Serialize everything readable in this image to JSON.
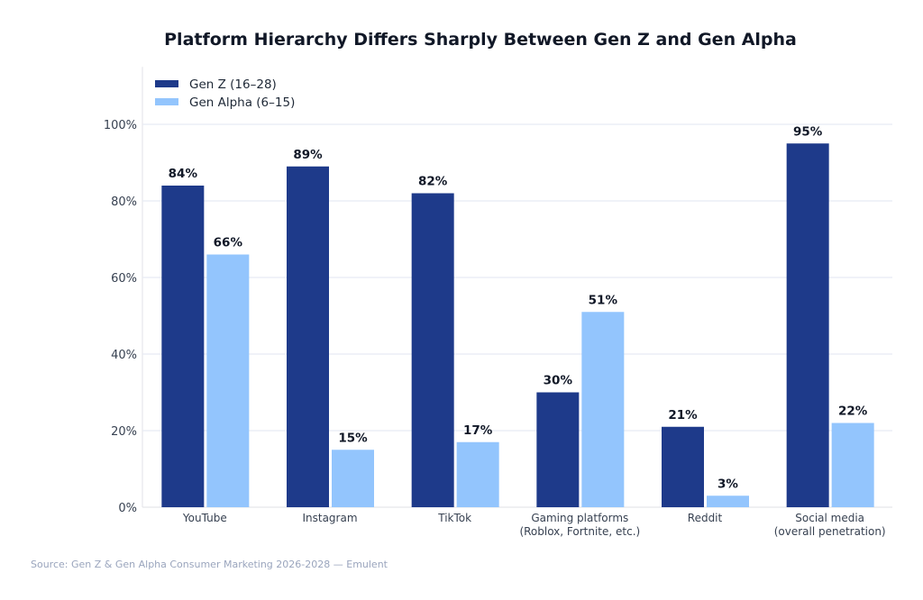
{
  "chart_data": {
    "type": "bar",
    "title": "Platform Hierarchy Differs Sharply Between Gen Z and Gen Alpha",
    "categories": [
      [
        "YouTube"
      ],
      [
        "Instagram"
      ],
      [
        "TikTok"
      ],
      [
        "Gaming platforms",
        "(Roblox, Fortnite, etc.)"
      ],
      [
        "Reddit"
      ],
      [
        "Social media",
        "(overall penetration)"
      ]
    ],
    "series": [
      {
        "name": "Gen Z (16–28)",
        "color": "#1e3a8a",
        "values": [
          84,
          89,
          82,
          30,
          21,
          95
        ]
      },
      {
        "name": "Gen Alpha (6–15)",
        "color": "#93c5fd",
        "values": [
          66,
          15,
          17,
          51,
          3,
          22
        ]
      }
    ],
    "ylim": [
      0,
      115
    ],
    "yticks": [
      0,
      20,
      40,
      60,
      80,
      100
    ],
    "ytick_format": "%",
    "grid": true,
    "legend_placement": "top-left",
    "xlabel": "",
    "ylabel": "",
    "source": "Source: Gen Z & Gen Alpha Consumer Marketing 2026-2028 — Emulent"
  }
}
